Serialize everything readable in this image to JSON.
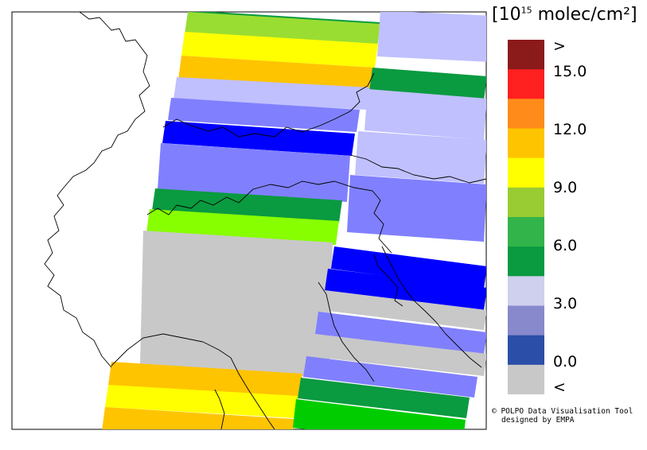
{
  "legend": {
    "unit_prefix": "[10",
    "unit_exp": "15",
    "unit_suffix": " molec/cm²]",
    "ticks": [
      ">",
      "15.0",
      "12.0",
      "9.0",
      "6.0",
      "3.0",
      "0.0",
      "<"
    ],
    "colors": [
      "#8b1a1a",
      "#ff2020",
      "#ff8c1a",
      "#ffc400",
      "#ffff00",
      "#99cc33",
      "#33b44a",
      "#0a9a40",
      "#cfcfee",
      "#8888cc",
      "#2b4fa8",
      "#c8c8c8"
    ]
  },
  "credit": {
    "line1": "© POLPO Data Visualisation Tool",
    "line2": "designed by EMPA"
  },
  "palette": {
    "yellow": "#ffff00",
    "orange": "#ffc400",
    "lightgreen": "#99dd33",
    "lime": "#88ff00",
    "green": "#0a9a40",
    "brightgreen": "#00cc00",
    "lavender": "#c0c0ff",
    "periwinkle": "#8080ff",
    "blue": "#0000ff",
    "grey": "#c8c8c8"
  }
}
